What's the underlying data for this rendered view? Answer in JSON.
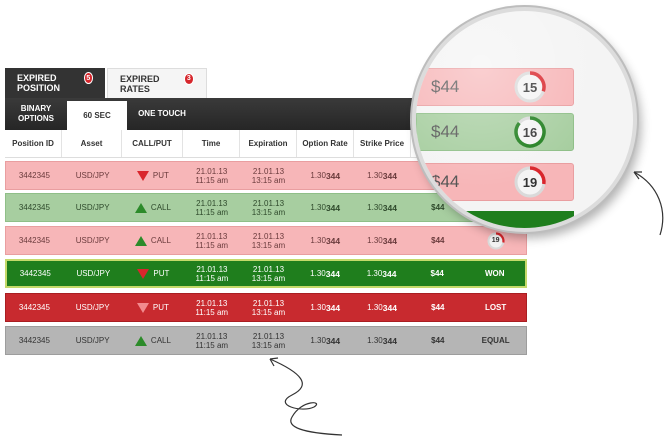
{
  "top_tabs": [
    {
      "label": "EXPIRED POSITION",
      "badge": "5"
    },
    {
      "label": "EXPIRED RATES",
      "badge": "3"
    }
  ],
  "sub_tabs": {
    "binary_line1": "BINARY",
    "binary_line2": "OPTIONS",
    "sixty": "60 SEC",
    "touch": "ONE TOUCH"
  },
  "columns": [
    "Position ID",
    "Asset",
    "CALL/PUT",
    "Time",
    "Expiration",
    "Option Rate",
    "Strike Price"
  ],
  "rows": [
    {
      "id": "3442345",
      "asset": "USD/JPY",
      "dir": "PUT",
      "date": "21.01.13",
      "time": "11:15 am",
      "exp_date": "21.01.13",
      "exp_time": "13:15 am",
      "rate_pre": "1.30",
      "rate_bold": "344",
      "strike_pre": "1.30",
      "strike_bold": "344",
      "amount": "$44",
      "result": ""
    },
    {
      "id": "3442345",
      "asset": "USD/JPY",
      "dir": "CALL",
      "date": "21.01.13",
      "time": "11:15 am",
      "exp_date": "21.01.13",
      "exp_time": "13:15 am",
      "rate_pre": "1.30",
      "rate_bold": "344",
      "strike_pre": "1.30",
      "strike_bold": "344",
      "amount": "$44",
      "result": ""
    },
    {
      "id": "3442345",
      "asset": "USD/JPY",
      "dir": "CALL",
      "date": "21.01.13",
      "time": "11:15 am",
      "exp_date": "21.01.13",
      "exp_time": "13:15 am",
      "rate_pre": "1.30",
      "rate_bold": "344",
      "strike_pre": "1.30",
      "strike_bold": "344",
      "amount": "$44",
      "timer": "19"
    },
    {
      "id": "3442345",
      "asset": "USD/JPY",
      "dir": "PUT",
      "date": "21.01.13",
      "time": "11:15 am",
      "exp_date": "21.01.13",
      "exp_time": "13:15 am",
      "rate_pre": "1.30",
      "rate_bold": "344",
      "strike_pre": "1.30",
      "strike_bold": "344",
      "amount": "$44",
      "result": "WON"
    },
    {
      "id": "3442345",
      "asset": "USD/JPY",
      "dir": "PUT",
      "date": "21.01.13",
      "time": "11:15 am",
      "exp_date": "21.01.13",
      "exp_time": "13:15 am",
      "rate_pre": "1.30",
      "rate_bold": "344",
      "strike_pre": "1.30",
      "strike_bold": "344",
      "amount": "$44",
      "result": "LOST"
    },
    {
      "id": "3442345",
      "asset": "USD/JPY",
      "dir": "CALL",
      "date": "21.01.13",
      "time": "11:15 am",
      "exp_date": "21.01.13",
      "exp_time": "13:15 am",
      "rate_pre": "1.30",
      "rate_bold": "344",
      "strike_pre": "1.30",
      "strike_bold": "344",
      "amount": "$44",
      "result": "EQUAL"
    }
  ],
  "magnifier": [
    {
      "amount": "$44",
      "timer": "15"
    },
    {
      "amount": "$44",
      "timer": "16"
    },
    {
      "amount": "$44",
      "timer": "19"
    }
  ],
  "colors": {
    "pink_row": "#f7b6b8",
    "light_green_row": "#a7cea0",
    "won_row": "#1f7e1d",
    "lost_row": "#c82a2f",
    "equal_row": "#b5b5b5",
    "put_arrow": "#d9262c",
    "call_arrow": "#2c8b2a"
  }
}
